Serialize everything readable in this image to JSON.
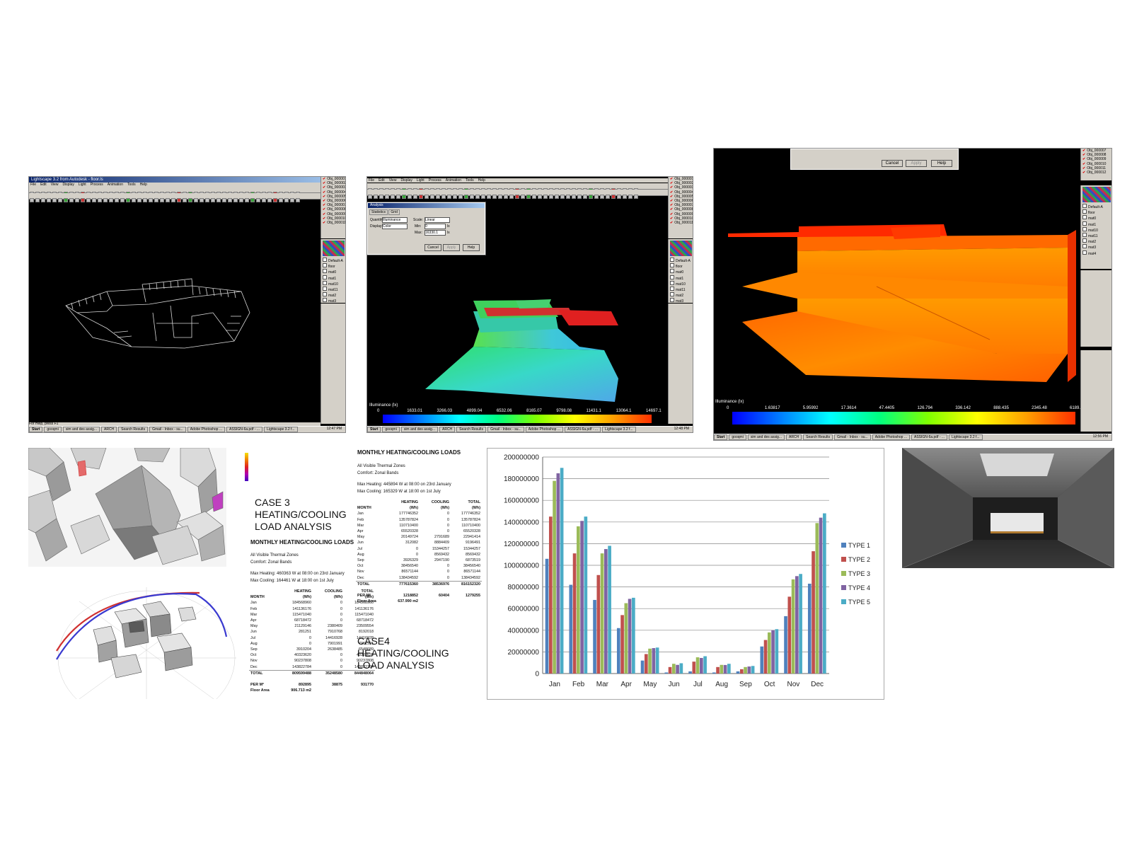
{
  "shots": {
    "wireframe": {
      "title": "Lightscape 3.2 from Autodesk - floor.ls",
      "menu": [
        "File",
        "Edit",
        "View",
        "Display",
        "Light",
        "Process",
        "Animation",
        "Tools",
        "Help"
      ],
      "status": "For Help, press F1",
      "objects": [
        "Obj_000001",
        "Obj_000002",
        "Obj_000003",
        "Obj_000004",
        "Obj_000005",
        "Obj_000006",
        "Obj_000007",
        "Obj_000008",
        "Obj_000009",
        "Obj_000010",
        "Obj_000011"
      ],
      "materials": [
        "Default-A",
        "floor",
        "mat0",
        "mat1",
        "mat10",
        "mat11",
        "mat2",
        "mat3"
      ]
    },
    "analysis_green": {
      "menu": [
        "File",
        "Edit",
        "View",
        "Display",
        "Light",
        "Process",
        "Animation",
        "Tools",
        "Help"
      ],
      "dialog": {
        "title": "Analysis",
        "tabs": [
          "Statistics",
          "Grid"
        ],
        "labels": {
          "quantity": "Quantity:",
          "quantity_value": "Illuminance",
          "display": "Display:",
          "display_value": "Color",
          "scale": "Scale:",
          "scale_value": "Linear",
          "min": "Min:",
          "min_value": "0",
          "max": "Max:",
          "max_value": "16330.1",
          "unit": "lx"
        },
        "buttons": [
          "Cancel",
          "Apply",
          "Help"
        ]
      },
      "legend_title": "Illuminance (lx)",
      "legend_ticks": [
        "0",
        "1633.01",
        "3266.03",
        "4899.04",
        "6532.06",
        "8165.07",
        "9798.08",
        "11431.1",
        "13064.1",
        "14697.1"
      ],
      "objects": [
        "Obj_000001",
        "Obj_000002",
        "Obj_000003",
        "Obj_000004",
        "Obj_000005",
        "Obj_000006",
        "Obj_000007",
        "Obj_000008",
        "Obj_000009",
        "Obj_000010",
        "Obj_000011"
      ],
      "materials": [
        "Default-A",
        "floor",
        "mat0",
        "mat1",
        "mat10",
        "mat11",
        "mat2",
        "mat3"
      ]
    },
    "analysis_orange": {
      "buttons": [
        "Cancel",
        "Apply",
        "Help"
      ],
      "legend_title": "Illuminance (lx)",
      "legend_ticks": [
        "0",
        "1.63817",
        "5.95992",
        "17.3614",
        "47.4405",
        "126.794",
        "336.142",
        "888.435",
        "2345.48",
        "6189.4"
      ],
      "objects": [
        "Obj_000007",
        "Obj_000008",
        "Obj_000009",
        "Obj_000010",
        "Obj_000011",
        "Obj_000012"
      ],
      "materials": [
        "Default-A",
        "floor",
        "mat0",
        "mat1",
        "mat10",
        "mat11",
        "mat2",
        "mat3",
        "mat4"
      ]
    },
    "taskbar": {
      "start": "Start",
      "items": [
        "gooqmi",
        "sim and des assig...",
        "ARCH",
        "Search Results",
        "Gmail - Inbox - su...",
        "Adobe Photoshop ...",
        "ASSIGN-6a.pdf - ...",
        "Lightscape 3.2 f..."
      ],
      "clock_1": "12:47 PM",
      "clock_2": "12:48 PM",
      "clock_3": "12:56 PM"
    }
  },
  "case3": {
    "heading_lines": [
      "CASE 3",
      "HEATING/COOLING",
      "LOAD ANALYSIS"
    ],
    "table_title": "MONTHLY HEATING/COOLING LOADS",
    "zones": "All Visible Thermal Zones",
    "comfort": "Comfort: Zonal Bands",
    "max_heating": "Max Heating: 460363 W  at 08:00 on 23rd January",
    "max_cooling": "Max Cooling: 164461 W  at 18:00 on 1st July",
    "header1": [
      "",
      "HEATING",
      "COOLING",
      "TOTAL"
    ],
    "header2": [
      "MONTH",
      "(Wh)",
      "(Wh)",
      "(Wh)"
    ],
    "rows": [
      [
        "Jan",
        "184568960",
        "0",
        "184568960"
      ],
      [
        "Feb",
        "141136176",
        "0",
        "141136176"
      ],
      [
        "Mar",
        "115471040",
        "0",
        "115471040"
      ],
      [
        "Apr",
        "68718472",
        "0",
        "68718472"
      ],
      [
        "May",
        "21129146",
        "2380409",
        "23509554"
      ],
      [
        "Jun",
        "281251",
        "7910768",
        "8192018"
      ],
      [
        "Jul",
        "0",
        "14416928",
        "14416928"
      ],
      [
        "Aug",
        "0",
        "7901991",
        "7901991"
      ],
      [
        "Sep",
        "3910204",
        "2638485",
        "6548689"
      ],
      [
        "Oct",
        "40323620",
        "0",
        "40323620"
      ],
      [
        "Nov",
        "90237808",
        "0",
        "90237808"
      ],
      [
        "Dec",
        "143822784",
        "0",
        "143822784"
      ]
    ],
    "total": [
      "TOTAL",
      "809599488",
      "35248580",
      "844848064"
    ],
    "per_m2": [
      "PER M²",
      "892895",
      "38875",
      "931770"
    ],
    "floor_area": [
      "Floor Area",
      "906.713 m2"
    ]
  },
  "case4": {
    "heading_lines": [
      "CASE4",
      "HEATING/COOLING",
      "LOAD ANALYSIS"
    ],
    "table_title": "MONTHLY HEATING/COOLING LOADS",
    "zones": "All Visible Thermal Zones",
    "comfort": "Comfort: Zonal Bands",
    "max_heating": "Max Heating: 445894 W  at 08:00 on 23rd January",
    "max_cooling": "Max Cooling: 165329 W  at 18:00 on 1st July",
    "header1": [
      "",
      "HEATING",
      "COOLING",
      "TOTAL"
    ],
    "header2": [
      "MONTH",
      "(Wh)",
      "(Wh)",
      "(Wh)"
    ],
    "rows": [
      [
        "Jan",
        "177746352",
        "0",
        "177746352"
      ],
      [
        "Feb",
        "135787824",
        "0",
        "135787824"
      ],
      [
        "Mar",
        "110710400",
        "0",
        "110710400"
      ],
      [
        "Apr",
        "65520328",
        "0",
        "65520328"
      ],
      [
        "May",
        "20149724",
        "2791689",
        "22941414"
      ],
      [
        "Jun",
        "312082",
        "8884409",
        "9196491"
      ],
      [
        "Jul",
        "0",
        "15344257",
        "15344257"
      ],
      [
        "Aug",
        "0",
        "8569432",
        "8569432"
      ],
      [
        "Sep",
        "3926329",
        "2947190",
        "6873519"
      ],
      [
        "Oct",
        "38456540",
        "0",
        "38456540"
      ],
      [
        "Nov",
        "86571144",
        "0",
        "86571144"
      ],
      [
        "Dec",
        "138434592",
        "0",
        "138434592"
      ]
    ],
    "total": [
      "TOTAL",
      "777615360",
      "38536976",
      "816152320"
    ],
    "per_m2": [
      "PER M²",
      "1218852",
      "60404",
      "1279255"
    ],
    "floor_area": [
      "Floor Area",
      "637.990 m2"
    ]
  },
  "chart_data": {
    "type": "bar",
    "categories": [
      "Jan",
      "Feb",
      "Mar",
      "Apr",
      "May",
      "Jun",
      "Jul",
      "Aug",
      "Sep",
      "Oct",
      "Nov",
      "Dec"
    ],
    "series": [
      {
        "name": "TYPE 1",
        "color": "#4f81bd",
        "values": [
          106000000,
          82000000,
          68000000,
          42000000,
          12000000,
          1000000,
          2000000,
          1000000,
          2000000,
          25000000,
          53000000,
          83000000
        ]
      },
      {
        "name": "TYPE 2",
        "color": "#c0504d",
        "values": [
          145000000,
          111000000,
          91000000,
          54000000,
          18000000,
          6000000,
          11000000,
          6000000,
          4000000,
          31000000,
          71000000,
          113000000
        ]
      },
      {
        "name": "TYPE 3",
        "color": "#9bbb59",
        "values": [
          178000000,
          136000000,
          111000000,
          65000000,
          23000000,
          9000000,
          15000000,
          8000000,
          6000000,
          38000000,
          87000000,
          139000000
        ]
      },
      {
        "name": "TYPE 4",
        "color": "#8064a2",
        "values": [
          185000000,
          141000000,
          115000000,
          69000000,
          23500000,
          8000000,
          14400000,
          7900000,
          6500000,
          40000000,
          90000000,
          144000000
        ]
      },
      {
        "name": "TYPE 5",
        "color": "#4bacc6",
        "values": [
          190000000,
          145000000,
          118000000,
          70000000,
          24000000,
          9500000,
          16000000,
          9000000,
          7000000,
          41000000,
          92000000,
          148000000
        ]
      }
    ],
    "y_ticks": [
      "0",
      "20000000",
      "40000000",
      "60000000",
      "80000000",
      "100000000",
      "120000000",
      "140000000",
      "160000000",
      "180000000",
      "200000000"
    ],
    "ylim": [
      0,
      200000000
    ],
    "grid": true,
    "legend_position": "right"
  }
}
